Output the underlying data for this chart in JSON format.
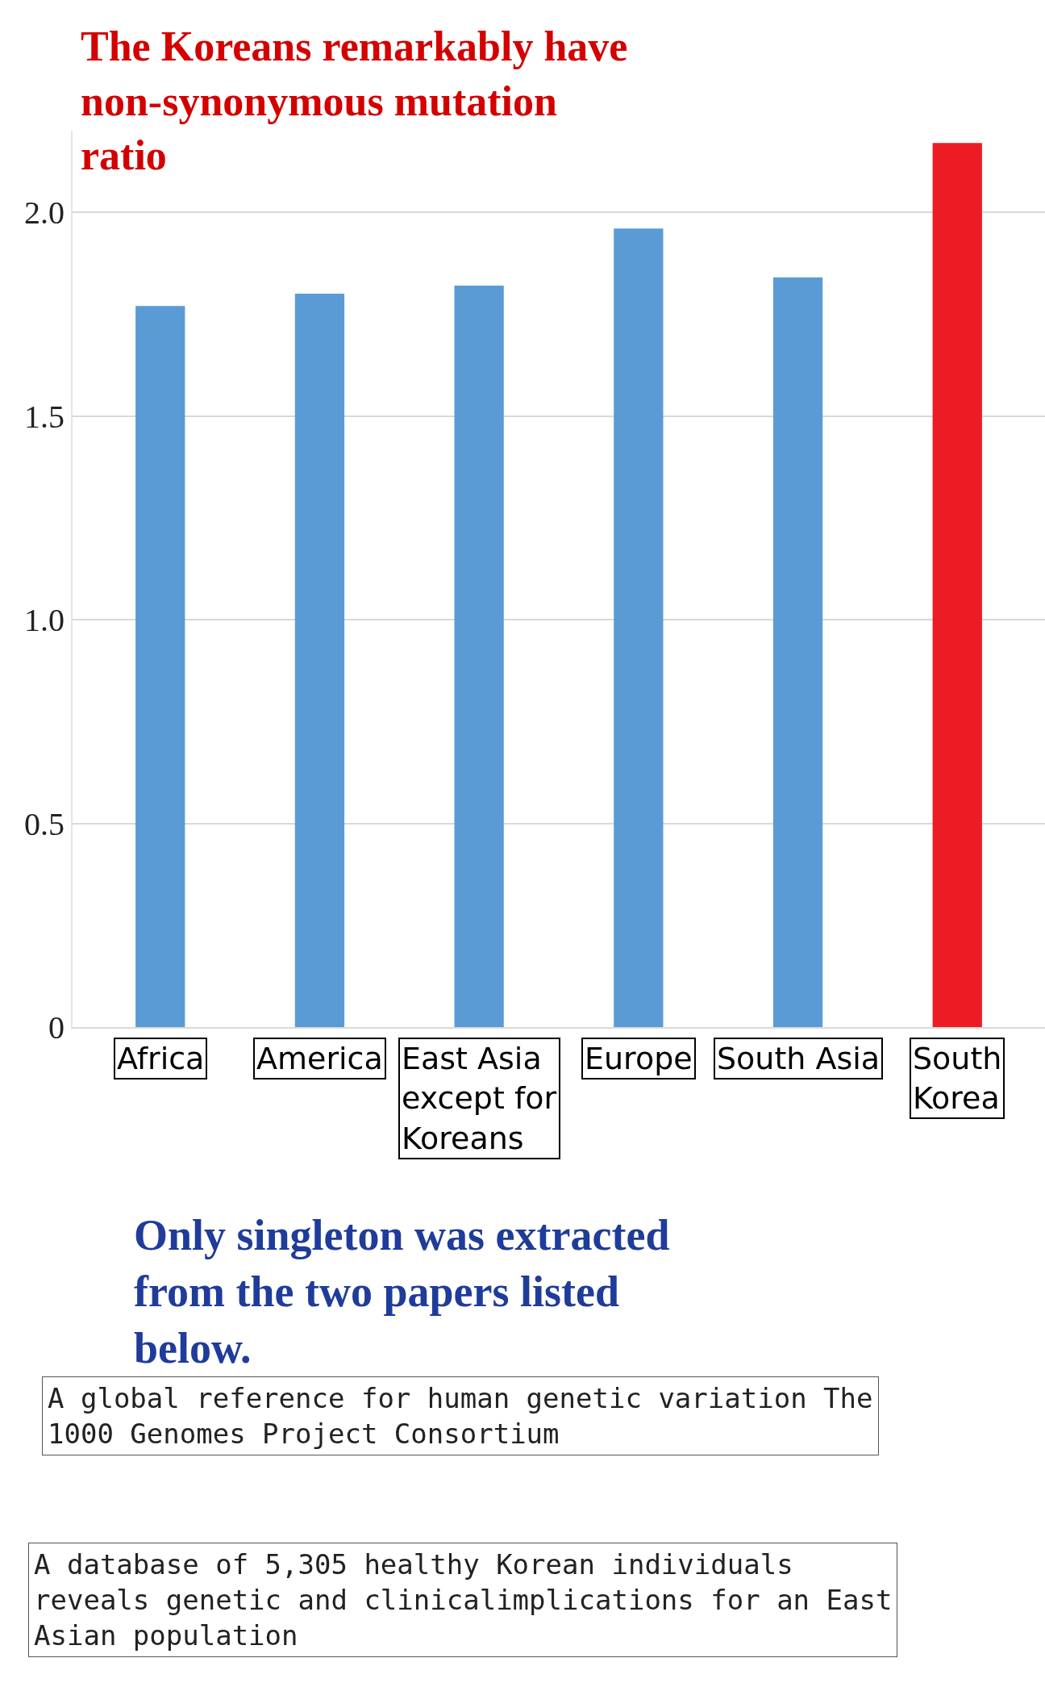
{
  "chart_data": {
    "type": "bar",
    "title": "The Koreans remarkably have non-synonymous mutation ratio",
    "categories": [
      "Africa",
      "America",
      "East Asia except for Koreans",
      "Europe",
      "South Asia",
      "South Korea"
    ],
    "values": [
      1.77,
      1.8,
      1.82,
      1.96,
      1.84,
      2.17
    ],
    "colors": [
      "#5b9bd5",
      "#5b9bd5",
      "#5b9bd5",
      "#5b9bd5",
      "#5b9bd5",
      "#ed1c24"
    ],
    "ylim": [
      0,
      2.2
    ],
    "yticks": [
      0,
      {
        "value": 0.5,
        "label": "0.5"
      },
      {
        "value": 1,
        "label": "1.0"
      },
      {
        "value": 1.5,
        "label": "1.5"
      },
      {
        "value": 2,
        "label": "2.0"
      }
    ],
    "grid": "y",
    "annotations": [
      "Only singleton was extracted from the two papers listed below.",
      "A global reference for human genetic variation The 1000 Genomes Project Consortium",
      "A database of 5,305 healthy Korean individuals reveals genetic and clinicalimplications for an East Asian population"
    ]
  }
}
